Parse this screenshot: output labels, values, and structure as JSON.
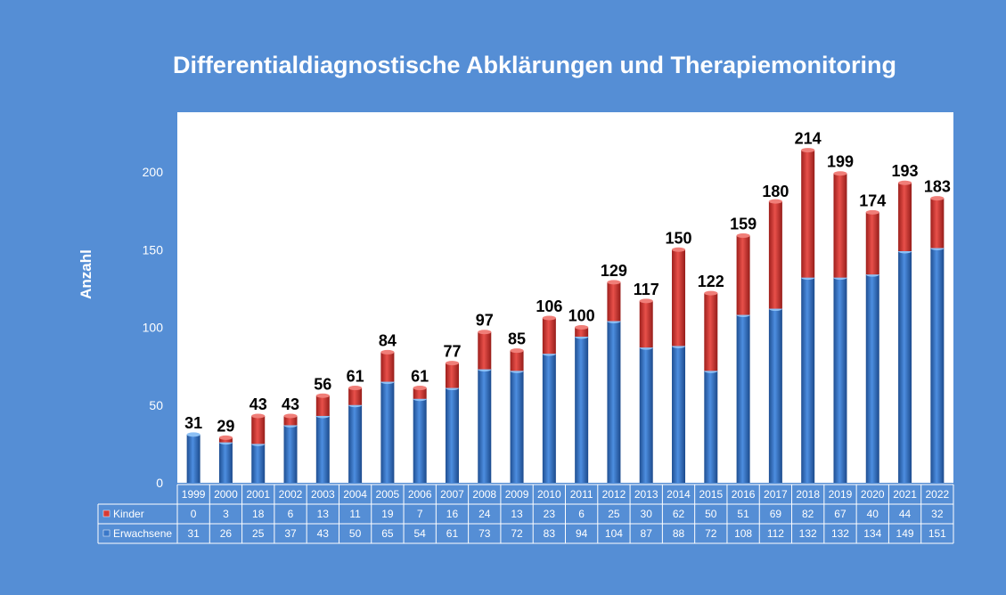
{
  "chart_data": {
    "type": "bar",
    "stacked": true,
    "title": "Differentialdiagnostische Abklärungen und Therapiemonitoring",
    "xlabel": "",
    "ylabel": "Anzahl",
    "ylim": [
      0,
      240
    ],
    "yticks": [
      0,
      50,
      100,
      150,
      200
    ],
    "categories": [
      "1999",
      "2000",
      "2001",
      "2002",
      "2003",
      "2004",
      "2005",
      "2006",
      "2007",
      "2008",
      "2009",
      "2010",
      "2011",
      "2012",
      "2013",
      "2014",
      "2015",
      "2016",
      "2017",
      "2018",
      "2019",
      "2020",
      "2021",
      "2022"
    ],
    "series": [
      {
        "name": "Kinder",
        "color": "#d73a35",
        "values": [
          0,
          3,
          18,
          6,
          13,
          11,
          19,
          7,
          16,
          24,
          13,
          23,
          6,
          25,
          30,
          62,
          50,
          51,
          69,
          82,
          67,
          40,
          44,
          32
        ]
      },
      {
        "name": "Erwachsene",
        "color": "#3a78c9",
        "values": [
          31,
          26,
          25,
          37,
          43,
          50,
          65,
          54,
          61,
          73,
          72,
          83,
          94,
          104,
          87,
          88,
          72,
          108,
          112,
          132,
          132,
          134,
          149,
          151
        ]
      }
    ],
    "totals": [
      31,
      29,
      43,
      43,
      56,
      61,
      84,
      61,
      77,
      97,
      85,
      106,
      100,
      129,
      117,
      150,
      122,
      159,
      180,
      214,
      199,
      174,
      193,
      183
    ],
    "data_table": true,
    "legend_position": "data-table-left"
  }
}
